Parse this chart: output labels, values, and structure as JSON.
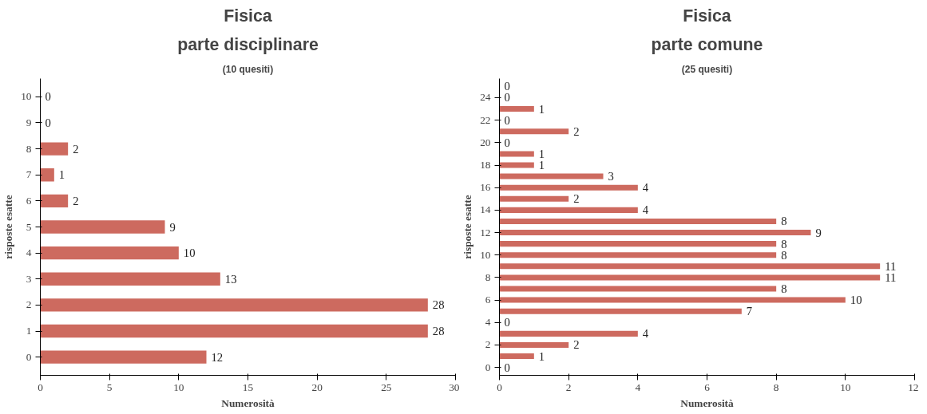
{
  "chart_data": [
    {
      "type": "bar",
      "orientation": "horizontal",
      "title": "Fisica",
      "subtitle": "parte disciplinare",
      "annotations": [
        "(10 quesiti)"
      ],
      "xlabel": "Numerosità",
      "ylabel": "risposte esatte",
      "categories": [
        "10",
        "9",
        "8",
        "7",
        "6",
        "5",
        "4",
        "3",
        "2",
        "1",
        "0"
      ],
      "values": [
        0,
        0,
        2,
        1,
        2,
        9,
        10,
        13,
        28,
        28,
        12
      ],
      "color": "#cd6a5f",
      "xlim": [
        0,
        30
      ],
      "xticks": [
        0,
        5,
        10,
        15,
        20,
        25,
        30
      ],
      "data_labels": true,
      "grid": false
    },
    {
      "type": "bar",
      "orientation": "horizontal",
      "title": "Fisica",
      "subtitle": "parte comune",
      "annotations": [
        "(25 quesiti)"
      ],
      "xlabel": "Numerosità",
      "ylabel": "risposte esatte",
      "categories": [
        null,
        "24",
        null,
        "22",
        null,
        "20",
        null,
        "18",
        null,
        "16",
        null,
        "14",
        null,
        "12",
        null,
        "10",
        null,
        "8",
        null,
        "6",
        null,
        "4",
        null,
        "2",
        null,
        "0"
      ],
      "values": [
        0,
        0,
        1,
        0,
        2,
        0,
        1,
        1,
        3,
        4,
        2,
        4,
        8,
        9,
        8,
        8,
        11,
        11,
        8,
        10,
        7,
        0,
        4,
        2,
        1,
        0
      ],
      "color": "#cd6a5f",
      "xlim": [
        0,
        12
      ],
      "xticks": [
        0,
        2,
        4,
        6,
        8,
        10,
        12
      ],
      "data_labels": true,
      "grid": false
    }
  ]
}
